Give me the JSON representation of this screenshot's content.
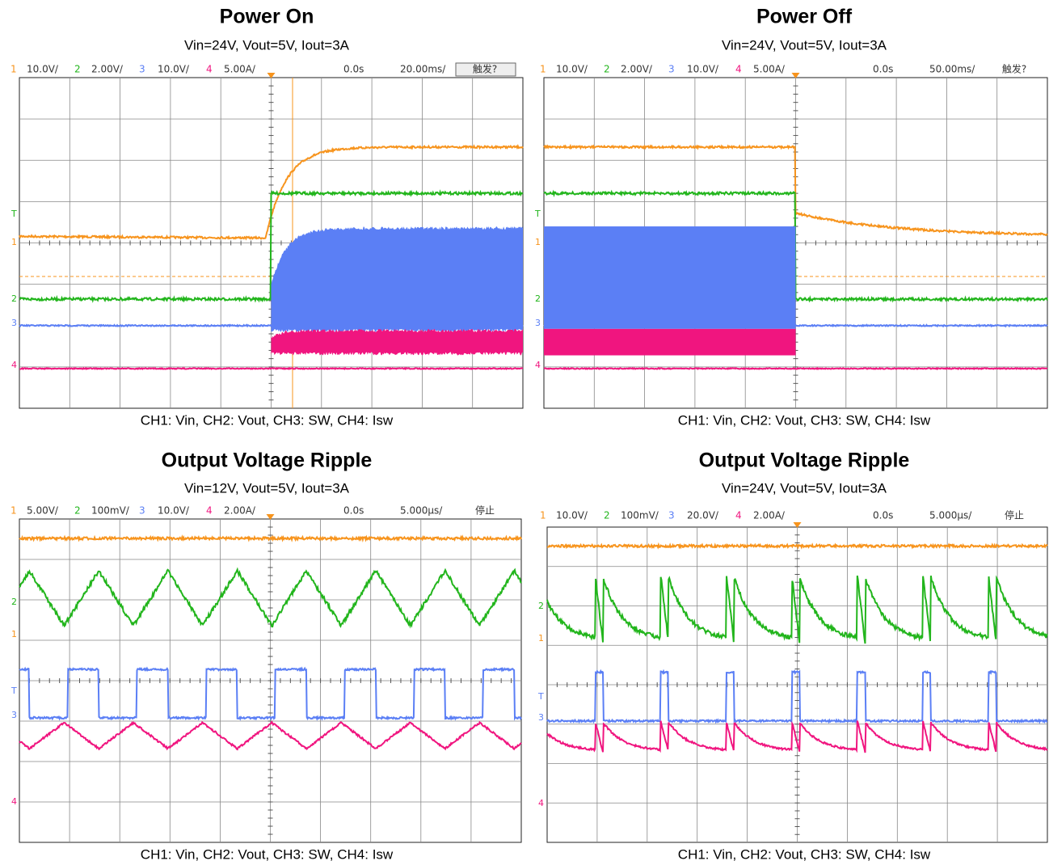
{
  "panels": [
    {
      "title": "Power On",
      "subtitle": "Vin=24V, Vout=5V, Iout=3A",
      "header": {
        "channels": [
          {
            "id": "1",
            "scale": "10.0V/"
          },
          {
            "id": "2",
            "scale": "2.00V/"
          },
          {
            "id": "3",
            "scale": "10.0V/"
          },
          {
            "id": "4",
            "scale": "5.00A/"
          }
        ],
        "offset": "0.0s",
        "timebase": "20.00ms/",
        "status": "触发?"
      },
      "markers": [
        "T",
        "1",
        "2",
        "3",
        "4"
      ],
      "caption": "CH1: Vin, CH2: Vout, CH3: SW, CH4: Isw"
    },
    {
      "title": "Power Off",
      "subtitle": "Vin=24V, Vout=5V, Iout=3A",
      "header": {
        "channels": [
          {
            "id": "1",
            "scale": "10.0V/"
          },
          {
            "id": "2",
            "scale": "2.00V/"
          },
          {
            "id": "3",
            "scale": "10.0V/"
          },
          {
            "id": "4",
            "scale": "5.00A/"
          }
        ],
        "offset": "0.0s",
        "timebase": "50.00ms/",
        "status": "触发?"
      },
      "markers": [
        "T",
        "1",
        "2",
        "3",
        "4"
      ],
      "caption": "CH1: Vin, CH2: Vout, CH3: SW, CH4: Isw"
    },
    {
      "title": "Output Voltage Ripple",
      "subtitle": "Vin=12V, Vout=5V, Iout=3A",
      "header": {
        "channels": [
          {
            "id": "1",
            "scale": "5.00V/"
          },
          {
            "id": "2",
            "scale": "100mV/"
          },
          {
            "id": "3",
            "scale": "10.0V/"
          },
          {
            "id": "4",
            "scale": "2.00A/"
          }
        ],
        "offset": "0.0s",
        "timebase": "5.000μs/",
        "status": "停止"
      },
      "markers": [
        "2",
        "1",
        "T",
        "3",
        "4"
      ],
      "caption": "CH1: Vin, CH2: Vout, CH3: SW, CH4: Isw"
    },
    {
      "title": "Output Voltage Ripple",
      "subtitle": "Vin=24V, Vout=5V, Iout=3A",
      "header": {
        "channels": [
          {
            "id": "1",
            "scale": "10.0V/"
          },
          {
            "id": "2",
            "scale": "100mV/"
          },
          {
            "id": "3",
            "scale": "20.0V/"
          },
          {
            "id": "4",
            "scale": "2.00A/"
          }
        ],
        "offset": "0.0s",
        "timebase": "5.000μs/",
        "status": "停止"
      },
      "markers": [
        "2",
        "1",
        "T",
        "3",
        "4"
      ],
      "caption": "CH1: Vin, CH2: Vout, CH3: SW, CH4: Isw"
    }
  ]
}
